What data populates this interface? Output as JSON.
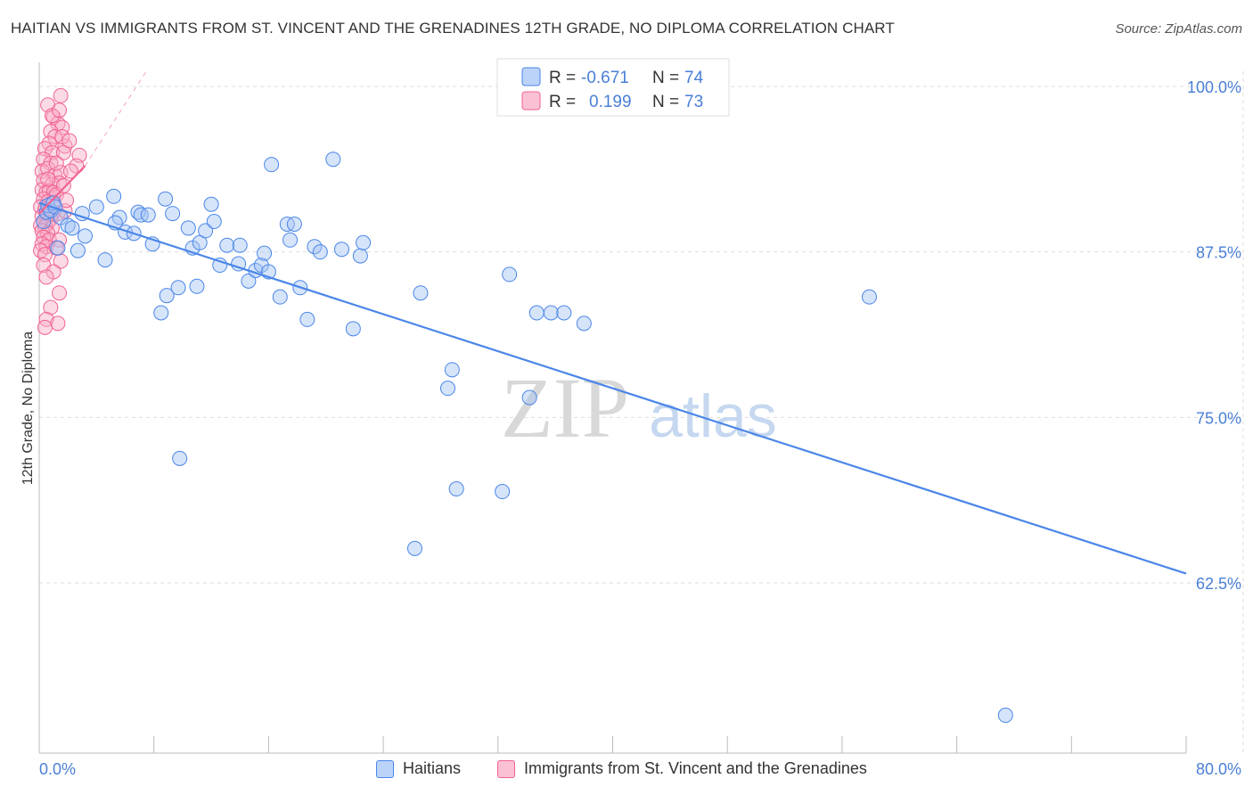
{
  "title": "HAITIAN VS IMMIGRANTS FROM ST. VINCENT AND THE GRENADINES 12TH GRADE, NO DIPLOMA CORRELATION CHART",
  "source": "Source: ZipAtlas.com",
  "watermark": {
    "zip": "ZIP",
    "atlas": "atlas"
  },
  "colors": {
    "blue": "#4a86e8",
    "blue_fill": "rgba(164,196,245,0.45)",
    "pink": "#f06292",
    "pink_fill": "rgba(248,172,198,0.45)",
    "tick_label": "#4a7fd6",
    "grid": "#dddddd"
  },
  "legend_top": {
    "rows": [
      {
        "r_label": "R =",
        "r_value": "-0.671",
        "n_label": "N =",
        "n_value": "74"
      },
      {
        "r_label": "R =",
        "r_value": "0.199",
        "n_label": "N =",
        "n_value": "73"
      }
    ]
  },
  "chart_data": {
    "type": "scatter",
    "title": "HAITIAN VS IMMIGRANTS FROM ST. VINCENT AND THE GRENADINES 12TH GRADE, NO DIPLOMA CORRELATION CHART",
    "xlabel": "",
    "ylabel": "12th Grade, No Diploma",
    "xlim": [
      0,
      80
    ],
    "ylim": [
      52,
      102
    ],
    "x_tick_labels": [
      "0.0%",
      "80.0%"
    ],
    "y_ticks": [
      100,
      87.5,
      75,
      62.5
    ],
    "y_tick_labels": [
      "100.0%",
      "87.5%",
      "75.0%",
      "62.5%"
    ],
    "grid": true,
    "legend_position": "top-center and bottom",
    "series": [
      {
        "name": "Haitians",
        "color": "#4a86e8",
        "r": -0.671,
        "n": 74,
        "trend": {
          "x": [
            0,
            80
          ],
          "y": [
            91.2,
            63.2
          ],
          "style": "solid"
        },
        "points": [
          [
            0.3,
            89.8
          ],
          [
            0.5,
            90.5
          ],
          [
            0.6,
            91.0
          ],
          [
            0.8,
            90.6
          ],
          [
            1.0,
            91.2
          ],
          [
            1.1,
            90.9
          ],
          [
            1.3,
            87.8
          ],
          [
            1.5,
            90.1
          ],
          [
            2.0,
            89.5
          ],
          [
            2.3,
            89.3
          ],
          [
            2.7,
            87.6
          ],
          [
            3.0,
            90.4
          ],
          [
            3.2,
            88.7
          ],
          [
            4.0,
            90.9
          ],
          [
            4.6,
            86.9
          ],
          [
            5.2,
            91.7
          ],
          [
            5.6,
            90.1
          ],
          [
            5.3,
            89.7
          ],
          [
            6.0,
            89.0
          ],
          [
            6.6,
            88.9
          ],
          [
            6.9,
            90.5
          ],
          [
            7.1,
            90.3
          ],
          [
            7.6,
            90.3
          ],
          [
            7.9,
            88.1
          ],
          [
            8.5,
            82.9
          ],
          [
            8.8,
            91.5
          ],
          [
            8.9,
            84.2
          ],
          [
            9.3,
            90.4
          ],
          [
            9.7,
            84.8
          ],
          [
            10.4,
            89.3
          ],
          [
            10.7,
            87.8
          ],
          [
            11.0,
            84.9
          ],
          [
            11.2,
            88.2
          ],
          [
            11.6,
            89.1
          ],
          [
            12.0,
            91.1
          ],
          [
            12.2,
            89.8
          ],
          [
            12.6,
            86.5
          ],
          [
            13.1,
            88.0
          ],
          [
            13.9,
            86.6
          ],
          [
            14.0,
            88.0
          ],
          [
            14.6,
            85.3
          ],
          [
            15.1,
            86.1
          ],
          [
            15.5,
            86.5
          ],
          [
            15.7,
            87.4
          ],
          [
            16.0,
            86.0
          ],
          [
            16.2,
            94.1
          ],
          [
            16.8,
            84.1
          ],
          [
            17.3,
            89.6
          ],
          [
            17.5,
            88.4
          ],
          [
            17.8,
            89.6
          ],
          [
            18.2,
            84.8
          ],
          [
            18.7,
            82.4
          ],
          [
            19.2,
            87.9
          ],
          [
            19.6,
            87.5
          ],
          [
            20.5,
            94.5
          ],
          [
            21.1,
            87.7
          ],
          [
            21.9,
            81.7
          ],
          [
            22.4,
            87.2
          ],
          [
            22.6,
            88.2
          ],
          [
            9.8,
            71.9
          ],
          [
            26.6,
            84.4
          ],
          [
            28.5,
            77.2
          ],
          [
            28.8,
            78.6
          ],
          [
            29.1,
            69.6
          ],
          [
            32.3,
            69.4
          ],
          [
            32.8,
            85.8
          ],
          [
            34.2,
            76.5
          ],
          [
            34.7,
            82.9
          ],
          [
            35.7,
            82.9
          ],
          [
            36.6,
            82.9
          ],
          [
            38.0,
            82.1
          ],
          [
            26.2,
            65.1
          ],
          [
            57.9,
            84.1
          ],
          [
            67.4,
            52.5
          ]
        ]
      },
      {
        "name": "Immigrants from St. Vincent and the Grenadines",
        "color": "#f06292",
        "r": 0.199,
        "n": 73,
        "trend": {
          "x": [
            0,
            3.2
          ],
          "y": [
            90.4,
            94.0
          ],
          "style": "solid"
        },
        "trend_extension": {
          "x": [
            3.2,
            7.5
          ],
          "y": [
            94.0,
            101.2
          ],
          "style": "dashed"
        },
        "points": [
          [
            1.5,
            99.3
          ],
          [
            0.6,
            98.6
          ],
          [
            1.0,
            97.7
          ],
          [
            1.3,
            97.2
          ],
          [
            1.6,
            96.9
          ],
          [
            0.8,
            96.6
          ],
          [
            1.1,
            96.2
          ],
          [
            0.7,
            95.7
          ],
          [
            1.8,
            95.5
          ],
          [
            0.4,
            95.3
          ],
          [
            0.9,
            95.0
          ],
          [
            1.7,
            95.0
          ],
          [
            2.8,
            94.8
          ],
          [
            0.3,
            94.5
          ],
          [
            0.8,
            94.2
          ],
          [
            2.6,
            94.0
          ],
          [
            0.2,
            93.6
          ],
          [
            0.6,
            93.8
          ],
          [
            1.1,
            93.3
          ],
          [
            1.5,
            93.5
          ],
          [
            0.3,
            92.9
          ],
          [
            0.9,
            92.6
          ],
          [
            1.4,
            92.7
          ],
          [
            0.2,
            92.2
          ],
          [
            0.5,
            92.0
          ],
          [
            0.7,
            92.1
          ],
          [
            1.0,
            92.0
          ],
          [
            1.2,
            91.8
          ],
          [
            0.3,
            91.5
          ],
          [
            0.6,
            91.3
          ],
          [
            0.9,
            91.2
          ],
          [
            0.1,
            90.9
          ],
          [
            0.4,
            90.7
          ],
          [
            0.7,
            90.6
          ],
          [
            1.0,
            90.5
          ],
          [
            1.3,
            90.4
          ],
          [
            1.8,
            90.6
          ],
          [
            0.2,
            90.2
          ],
          [
            0.5,
            90.1
          ],
          [
            0.8,
            90.0
          ],
          [
            0.3,
            89.8
          ],
          [
            0.6,
            89.7
          ],
          [
            0.1,
            89.5
          ],
          [
            0.4,
            89.4
          ],
          [
            0.9,
            89.3
          ],
          [
            0.2,
            89.1
          ],
          [
            0.6,
            88.9
          ],
          [
            0.3,
            88.6
          ],
          [
            0.7,
            88.4
          ],
          [
            1.4,
            88.4
          ],
          [
            0.2,
            88.1
          ],
          [
            0.5,
            87.9
          ],
          [
            0.1,
            87.6
          ],
          [
            1.2,
            87.8
          ],
          [
            0.4,
            87.3
          ],
          [
            1.5,
            86.8
          ],
          [
            0.3,
            86.5
          ],
          [
            1.0,
            86.0
          ],
          [
            0.5,
            85.6
          ],
          [
            1.4,
            84.4
          ],
          [
            0.8,
            83.3
          ],
          [
            0.5,
            82.4
          ],
          [
            1.3,
            82.1
          ],
          [
            0.4,
            81.8
          ],
          [
            1.9,
            91.4
          ],
          [
            2.2,
            93.6
          ],
          [
            1.2,
            94.2
          ],
          [
            1.6,
            96.2
          ],
          [
            0.9,
            97.8
          ],
          [
            1.4,
            98.2
          ],
          [
            2.1,
            95.9
          ],
          [
            0.6,
            93.0
          ],
          [
            1.7,
            92.5
          ]
        ]
      }
    ]
  }
}
